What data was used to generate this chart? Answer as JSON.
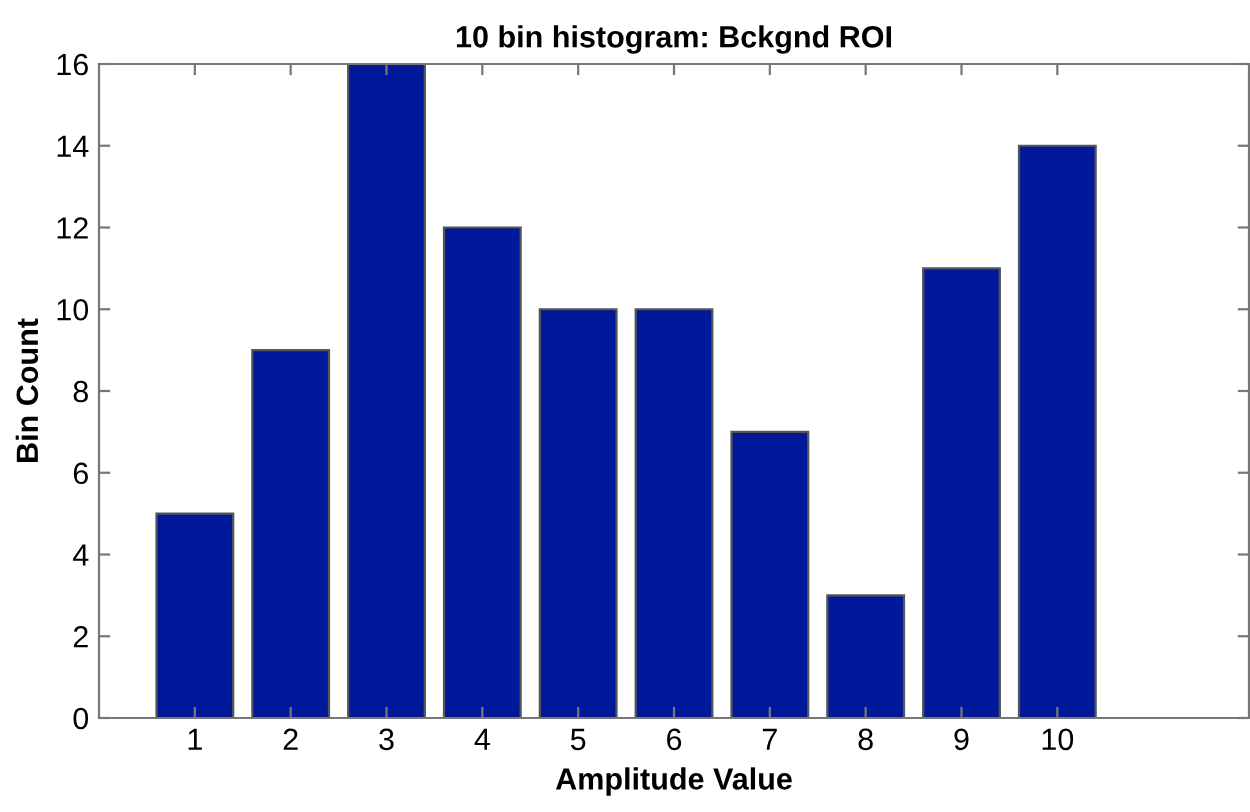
{
  "chart_data": {
    "type": "bar",
    "title": "10 bin histogram: Bckgnd ROI",
    "xlabel": "Amplitude Value",
    "ylabel": "Bin Count",
    "x": [
      1,
      2,
      3,
      4,
      5,
      6,
      7,
      8,
      9,
      10
    ],
    "values": [
      5,
      9,
      16,
      12,
      10,
      10,
      7,
      3,
      11,
      14
    ],
    "color": "#00189a",
    "xlim": [
      0,
      12
    ],
    "xticks": [
      1,
      2,
      3,
      4,
      5,
      6,
      7,
      8,
      9,
      10
    ],
    "ylim": [
      0,
      16
    ],
    "yticks": [
      0,
      2,
      4,
      6,
      8,
      10,
      12,
      14,
      16
    ],
    "grid": false
  }
}
